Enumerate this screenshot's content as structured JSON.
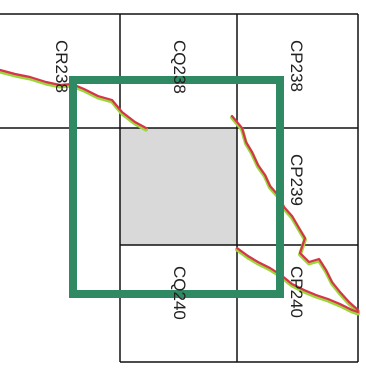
{
  "map": {
    "colors": {
      "background": "#ffffff",
      "grid_line": "#111111",
      "highlight_cell": "#d8d9d8",
      "selection_frame": "#2f8a63",
      "route_red": "#d6344a",
      "route_green": "#9bd63a"
    },
    "cells": [
      {
        "id": "CR238",
        "label": "CR238"
      },
      {
        "id": "CQ238",
        "label": "CQ238"
      },
      {
        "id": "CP238",
        "label": "CP238"
      },
      {
        "id": "CP239",
        "label": "CP239"
      },
      {
        "id": "CQ240",
        "label": "CQ240"
      },
      {
        "id": "CP240",
        "label": "CP240"
      }
    ]
  }
}
